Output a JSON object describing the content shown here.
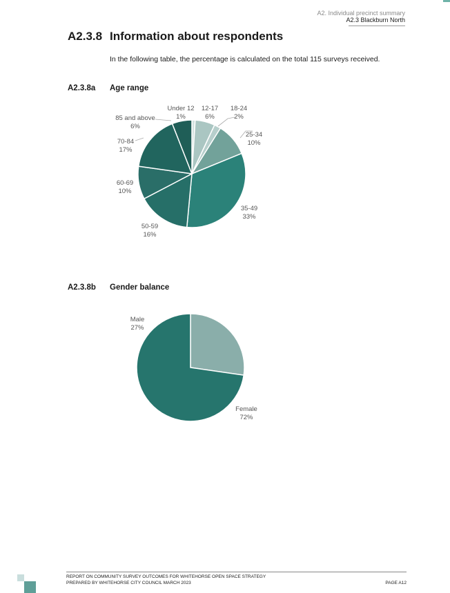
{
  "header": {
    "section": "A2. Individual precinct summary",
    "subsection": "A2.3 Blackburn North"
  },
  "heading": {
    "number": "A2.3.8",
    "title": "Information about respondents"
  },
  "intro": "In the following table, the percentage is calculated on the total 115 surveys received.",
  "age_section": {
    "number": "A2.3.8a",
    "title": "Age range"
  },
  "gender_section": {
    "number": "A2.3.8b",
    "title": "Gender balance"
  },
  "chart_data": [
    {
      "type": "pie",
      "title": "",
      "categories": [
        "Under 12",
        "12-17",
        "18-24",
        "25-34",
        "35-49",
        "50-59",
        "60-69",
        "70-84",
        "85 and above"
      ],
      "values": [
        1,
        6,
        2,
        10,
        33,
        16,
        10,
        17,
        6
      ],
      "labels": [
        "1%",
        "6%",
        "2%",
        "10%",
        "33%",
        "16%",
        "10%",
        "17%",
        "6%"
      ],
      "colors": [
        "#d3e2e0",
        "#aac6c2",
        "#b7cfcc",
        "#72a29a",
        "#2b8279",
        "#266f68",
        "#2a6e68",
        "#21655e",
        "#1f5e57"
      ]
    },
    {
      "type": "pie",
      "title": "",
      "categories": [
        "Male",
        "Female"
      ],
      "values": [
        27,
        72
      ],
      "labels": [
        "27%",
        "72%"
      ],
      "colors": [
        "#8aaeaa",
        "#26756d"
      ]
    }
  ],
  "footer": {
    "line1": "REPORT ON COMMUNITY SURVEY OUTCOMES FOR WHITEHORSE OPEN SPACE STRATEGY",
    "line2": "PREPARED BY WHITEHORSE CITY COUNCIL MARCH 2023",
    "page": "PAGE A12"
  }
}
